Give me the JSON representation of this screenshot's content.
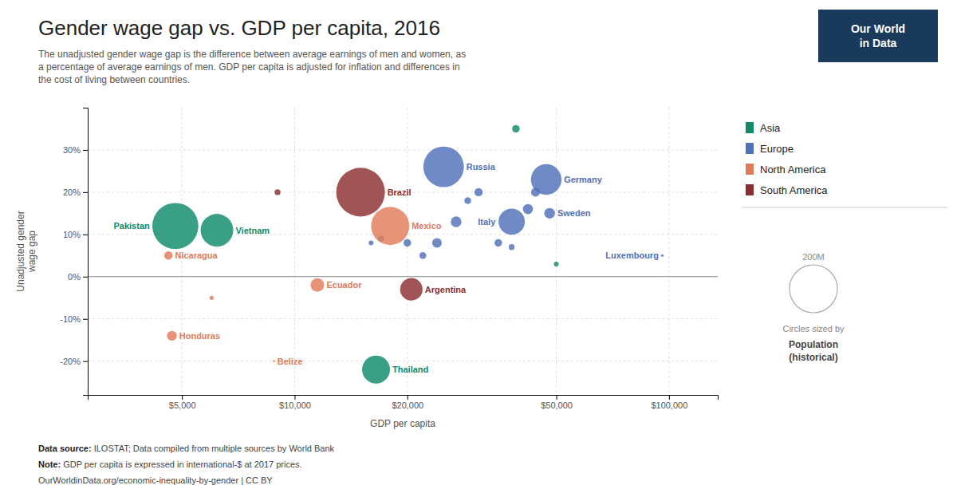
{
  "chart_data": {
    "type": "scatter",
    "title": "Gender wage gap vs. GDP per capita, 2016",
    "subtitle": "The unadjusted gender wage gap is the difference between average earnings of men and women, as\na percentage of average earnings of men. GDP per capita is adjusted for inflation and differences in\nthe cost of living between countries.",
    "xlabel": "GDP per capita",
    "ylabel": "Unadjusted gender\nwage gap",
    "log": "x",
    "grid": true,
    "legend": "right",
    "xlim": [
      2800,
      135000
    ],
    "xticks": [
      {
        "value": 5000,
        "label": "$5,000"
      },
      {
        "value": 10000,
        "label": "$10,000"
      },
      {
        "value": 20000,
        "label": "$20,000"
      },
      {
        "value": 50000,
        "label": "$50,000"
      },
      {
        "value": 100000,
        "label": "$100,000"
      }
    ],
    "ylim": [
      -28,
      40
    ],
    "yticks": [
      {
        "value": -20,
        "label": "-20%"
      },
      {
        "value": -10,
        "label": "-10%"
      },
      {
        "value": 0,
        "label": "0%"
      },
      {
        "value": 10,
        "label": "10%"
      },
      {
        "value": 20,
        "label": "20%"
      },
      {
        "value": 30,
        "label": "30%"
      }
    ],
    "series": [
      {
        "name": "Asia",
        "color": "#0d8a6a",
        "labels": [
          "Pakistan",
          "Vietnam",
          "Thailand",
          null,
          null
        ],
        "x": [
          4800,
          6200,
          16500,
          50000,
          39000
        ],
        "values": [
          12,
          11,
          -22,
          3,
          35
        ],
        "sizes": [
          185000000,
          93000000,
          68000000,
          2000000,
          5000000
        ]
      },
      {
        "name": "Europe",
        "color": "#5070b8",
        "labels": [
          "Russia",
          "Italy",
          "Germany",
          "Sweden",
          "Luxembourg",
          null,
          null,
          null,
          null,
          null,
          null,
          null,
          null,
          null,
          null,
          null,
          null
        ],
        "x": [
          25000,
          38000,
          47000,
          48000,
          96000,
          20000,
          22000,
          24000,
          27000,
          29000,
          31000,
          35000,
          38000,
          42000,
          44000,
          17000,
          16000
        ],
        "values": [
          26,
          13,
          23,
          15,
          5,
          8,
          5,
          8,
          13,
          18,
          20,
          8,
          7,
          16,
          20,
          9,
          8
        ],
        "sizes": [
          144000000,
          60000000,
          82000000,
          10000000,
          600000,
          5000000,
          4000000,
          8000000,
          10000000,
          4000000,
          6000000,
          5000000,
          3000000,
          9000000,
          7000000,
          3000000,
          2000000
        ]
      },
      {
        "name": "North America",
        "color": "#e07b5a",
        "labels": [
          "Nicaragua",
          "Honduras",
          "Belize",
          "Ecuador",
          "Mexico",
          null
        ],
        "x": [
          4600,
          4700,
          8800,
          11500,
          18000,
          6000
        ],
        "values": [
          5,
          -14,
          -20,
          -2,
          12,
          -5
        ],
        "sizes": [
          6200000,
          8500000,
          380000,
          16000000,
          127000000,
          1500000
        ]
      },
      {
        "name": "South America",
        "color": "#8b2e30",
        "labels": [
          "Brazil",
          "Argentina",
          null
        ],
        "x": [
          15000,
          20500,
          9000
        ],
        "values": [
          20,
          -3,
          20
        ],
        "sizes": [
          207000000,
          44000000,
          3000000
        ]
      }
    ],
    "size_legend": {
      "value": 200000000,
      "label": "200M",
      "title": "Circles sized by",
      "variable": "Population\n(historical)"
    },
    "logo": {
      "text": "Our World\nin Data",
      "color": "#1a3a5c"
    },
    "footer": [
      {
        "bold": "Data source:",
        "text": " ILOSTAT; Data compiled from multiple sources by World Bank"
      },
      {
        "bold": "Note:",
        "text": " GDP per capita is expressed in international-$ at 2017 prices."
      },
      {
        "text": "OurWorldinData.org/economic-inequality-by-gender | CC BY"
      }
    ]
  }
}
